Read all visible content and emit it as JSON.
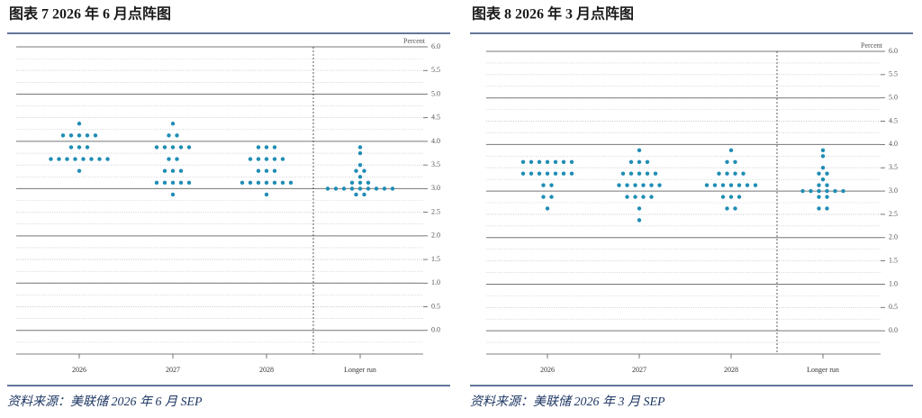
{
  "chart_data": [
    {
      "type": "dot",
      "title": "图表 7   2026 年 6 月点阵图",
      "source": "资料来源：美联储 2026 年 6 月 SEP",
      "y_label": "Percent",
      "categories": [
        "2026",
        "2027",
        "2028",
        "Longer run"
      ],
      "color": "#1f8db5",
      "dots": [
        [
          {
            "value": 4.375,
            "count": 1
          },
          {
            "value": 4.125,
            "count": 5
          },
          {
            "value": 3.875,
            "count": 3
          },
          {
            "value": 3.625,
            "count": 8
          },
          {
            "value": 3.375,
            "count": 1
          }
        ],
        [
          {
            "value": 4.375,
            "count": 1
          },
          {
            "value": 4.125,
            "count": 2
          },
          {
            "value": 3.875,
            "count": 5
          },
          {
            "value": 3.625,
            "count": 2
          },
          {
            "value": 3.375,
            "count": 3
          },
          {
            "value": 3.125,
            "count": 5
          },
          {
            "value": 2.875,
            "count": 1
          }
        ],
        [
          {
            "value": 3.875,
            "count": 3
          },
          {
            "value": 3.625,
            "count": 5
          },
          {
            "value": 3.375,
            "count": 3
          },
          {
            "value": 3.125,
            "count": 7
          },
          {
            "value": 2.875,
            "count": 1
          }
        ],
        [
          {
            "value": 3.875,
            "count": 1
          },
          {
            "value": 3.75,
            "count": 1
          },
          {
            "value": 3.5,
            "count": 1
          },
          {
            "value": 3.375,
            "count": 2
          },
          {
            "value": 3.25,
            "count": 1
          },
          {
            "value": 3.125,
            "count": 3
          },
          {
            "value": 3.0,
            "count": 9
          },
          {
            "value": 2.875,
            "count": 2
          }
        ]
      ],
      "ylim": [
        -0.5,
        6
      ],
      "yticks": [
        {
          "value": 0,
          "label": "0.0"
        },
        {
          "value": 0.5,
          "label": "0.5"
        },
        {
          "value": 1,
          "label": "1.0"
        },
        {
          "value": 1.5,
          "label": "1.5"
        },
        {
          "value": 2,
          "label": "2.0"
        },
        {
          "value": 2.5,
          "label": "2.5"
        },
        {
          "value": 3,
          "label": "3.0"
        },
        {
          "value": 3.5,
          "label": "3.5"
        },
        {
          "value": 4,
          "label": "4.0"
        },
        {
          "value": 4.5,
          "label": "4.5"
        },
        {
          "value": 5,
          "label": "5.0"
        },
        {
          "value": 5.5,
          "label": "5.5"
        },
        {
          "value": 6,
          "label": "6.0"
        }
      ],
      "minor_grid_step": 0.25
    },
    {
      "type": "dot",
      "title": "图表 8   2026 年 3 月点阵图",
      "source": "资料来源：美联储 2026 年 3 月 SEP",
      "y_label": "Percent",
      "categories": [
        "2026",
        "2027",
        "2028",
        "Longer run"
      ],
      "color": "#1f8db5",
      "dots": [
        [
          {
            "value": 3.625,
            "count": 7
          },
          {
            "value": 3.375,
            "count": 7
          },
          {
            "value": 3.125,
            "count": 2
          },
          {
            "value": 2.875,
            "count": 2
          },
          {
            "value": 2.625,
            "count": 1
          }
        ],
        [
          {
            "value": 3.875,
            "count": 1
          },
          {
            "value": 3.625,
            "count": 3
          },
          {
            "value": 3.375,
            "count": 5
          },
          {
            "value": 3.125,
            "count": 6
          },
          {
            "value": 2.875,
            "count": 4
          },
          {
            "value": 2.625,
            "count": 1
          },
          {
            "value": 2.375,
            "count": 1
          }
        ],
        [
          {
            "value": 3.875,
            "count": 1
          },
          {
            "value": 3.625,
            "count": 2
          },
          {
            "value": 3.375,
            "count": 4
          },
          {
            "value": 3.125,
            "count": 7
          },
          {
            "value": 2.875,
            "count": 3
          },
          {
            "value": 2.625,
            "count": 2
          }
        ],
        [
          {
            "value": 3.875,
            "count": 1
          },
          {
            "value": 3.75,
            "count": 1
          },
          {
            "value": 3.5,
            "count": 1
          },
          {
            "value": 3.375,
            "count": 2
          },
          {
            "value": 3.25,
            "count": 1
          },
          {
            "value": 3.125,
            "count": 2
          },
          {
            "value": 3.0,
            "count": 6
          },
          {
            "value": 2.875,
            "count": 2
          },
          {
            "value": 2.625,
            "count": 2
          }
        ]
      ],
      "ylim": [
        -0.5,
        6
      ],
      "yticks": [
        {
          "value": 0,
          "label": "0.0"
        },
        {
          "value": 0.5,
          "label": "0.5"
        },
        {
          "value": 1,
          "label": "1.0"
        },
        {
          "value": 1.5,
          "label": "1.5"
        },
        {
          "value": 2,
          "label": "2.0"
        },
        {
          "value": 2.5,
          "label": "2.5"
        },
        {
          "value": 3,
          "label": "3.0"
        },
        {
          "value": 3.5,
          "label": "3.5"
        },
        {
          "value": 4,
          "label": "4.0"
        },
        {
          "value": 4.5,
          "label": "4.5"
        },
        {
          "value": 5,
          "label": "5.0"
        },
        {
          "value": 5.5,
          "label": "5.5"
        },
        {
          "value": 6,
          "label": "6.0"
        }
      ],
      "minor_grid_step": 0.25
    }
  ]
}
